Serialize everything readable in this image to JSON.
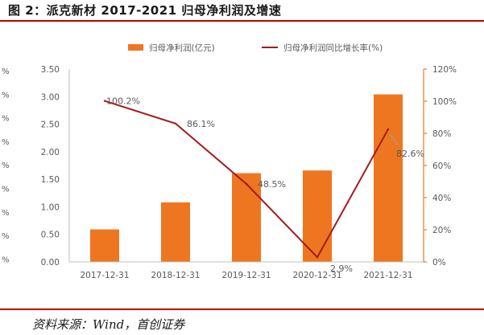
{
  "figure": {
    "title": "图 2：派克新材 2017-2021 归母净利润及增速",
    "source": "资料来源：Wind，首创证券"
  },
  "colors": {
    "bar": "#ee7621",
    "line": "#a31b1b",
    "rule": "#c00000",
    "axis_text": "#595959"
  },
  "left_clip_labels": [
    "%",
    "%",
    "%",
    "%",
    "%",
    "%",
    "%",
    "%",
    "%"
  ],
  "chart_data": {
    "type": "bar",
    "categories": [
      "2017-12-31",
      "2018-12-31",
      "2019-12-31",
      "2020-12-31",
      "2021-12-31"
    ],
    "series": [
      {
        "name": "归母净利润(亿元)",
        "type": "bar",
        "axis": "left",
        "values": [
          0.59,
          1.08,
          1.61,
          1.66,
          3.04
        ]
      },
      {
        "name": "归母净利润同比增长率(%)",
        "type": "line",
        "axis": "right",
        "values": [
          100.2,
          86.1,
          48.5,
          2.9,
          82.6
        ],
        "labels": [
          "100.2%",
          "86.1%",
          "48.5%",
          "2.9%",
          "82.6%"
        ]
      }
    ],
    "y_left": {
      "min": 0,
      "max": 3.5,
      "ticks": [
        "0.00",
        "0.50",
        "1.00",
        "1.50",
        "2.00",
        "2.50",
        "3.00",
        "3.50"
      ]
    },
    "y_right": {
      "min": 0,
      "max": 120,
      "ticks": [
        "0%",
        "20%",
        "40%",
        "60%",
        "80%",
        "100%",
        "120%"
      ]
    },
    "legend": "top",
    "grid": false
  }
}
